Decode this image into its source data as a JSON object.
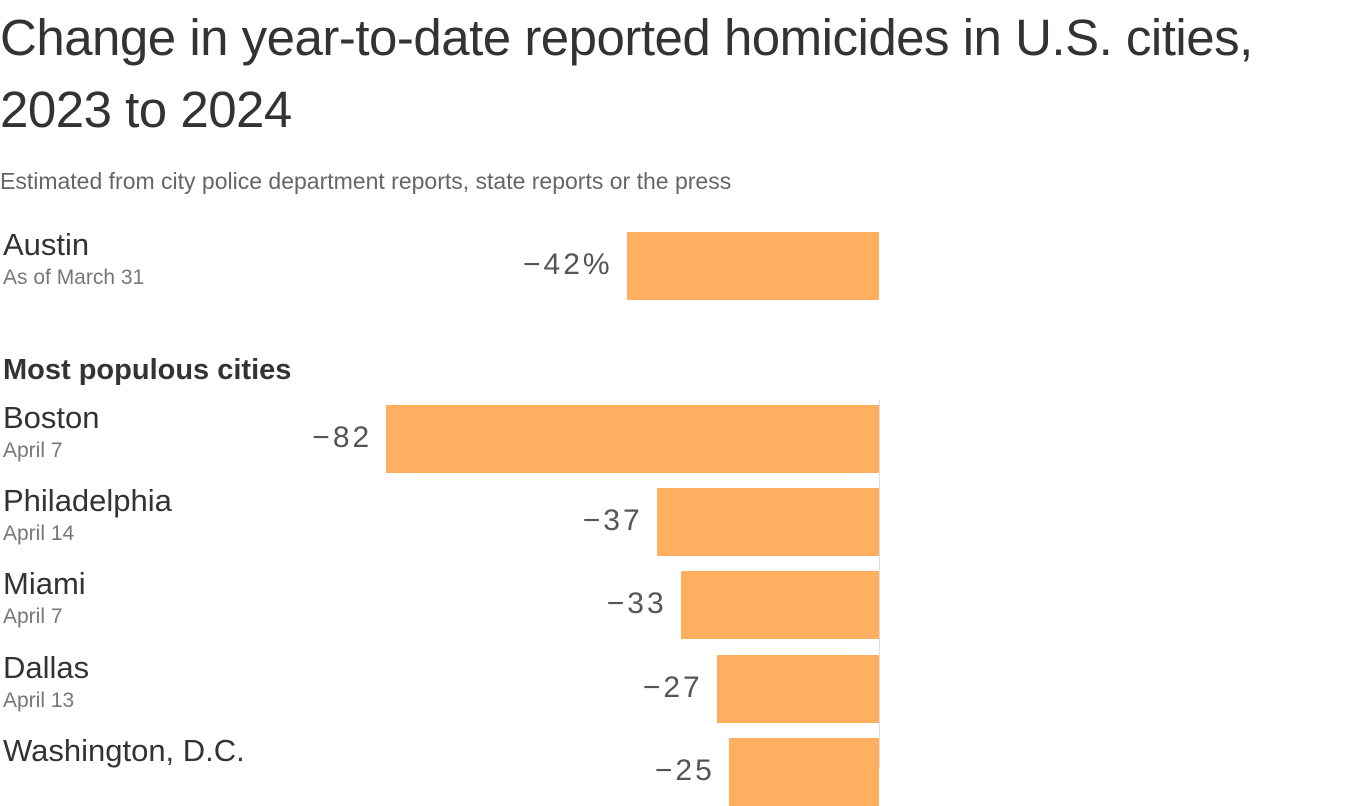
{
  "title": "Change in year-to-date reported homicides in U.S. cities, 2023 to 2024",
  "subtitle": "Estimated from city police department reports, state reports or the press",
  "colors": {
    "bar": "#ffaf5f",
    "text": "#333333",
    "muted": "#777777"
  },
  "chart_data": {
    "type": "bar",
    "orientation": "horizontal",
    "unit": "%",
    "title": "Change in year-to-date reported homicides in U.S. cities, 2023 to 2024",
    "subtitle": "Estimated from city police department reports, state reports or the press",
    "featured": {
      "city": "Austin",
      "date": "As of March 31",
      "value": -42,
      "label": "−42%"
    },
    "group_label": "Most populous cities",
    "rows": [
      {
        "city": "Boston",
        "date": "April 7",
        "value": -82,
        "label": "−82"
      },
      {
        "city": "Philadelphia",
        "date": "April 14",
        "value": -37,
        "label": "−37"
      },
      {
        "city": "Miami",
        "date": "April 7",
        "value": -33,
        "label": "−33"
      },
      {
        "city": "Dallas",
        "date": "April 13",
        "value": -27,
        "label": "−27"
      },
      {
        "city": "Washington, D.C.",
        "date": "",
        "value": -25,
        "label": "−25"
      }
    ]
  }
}
